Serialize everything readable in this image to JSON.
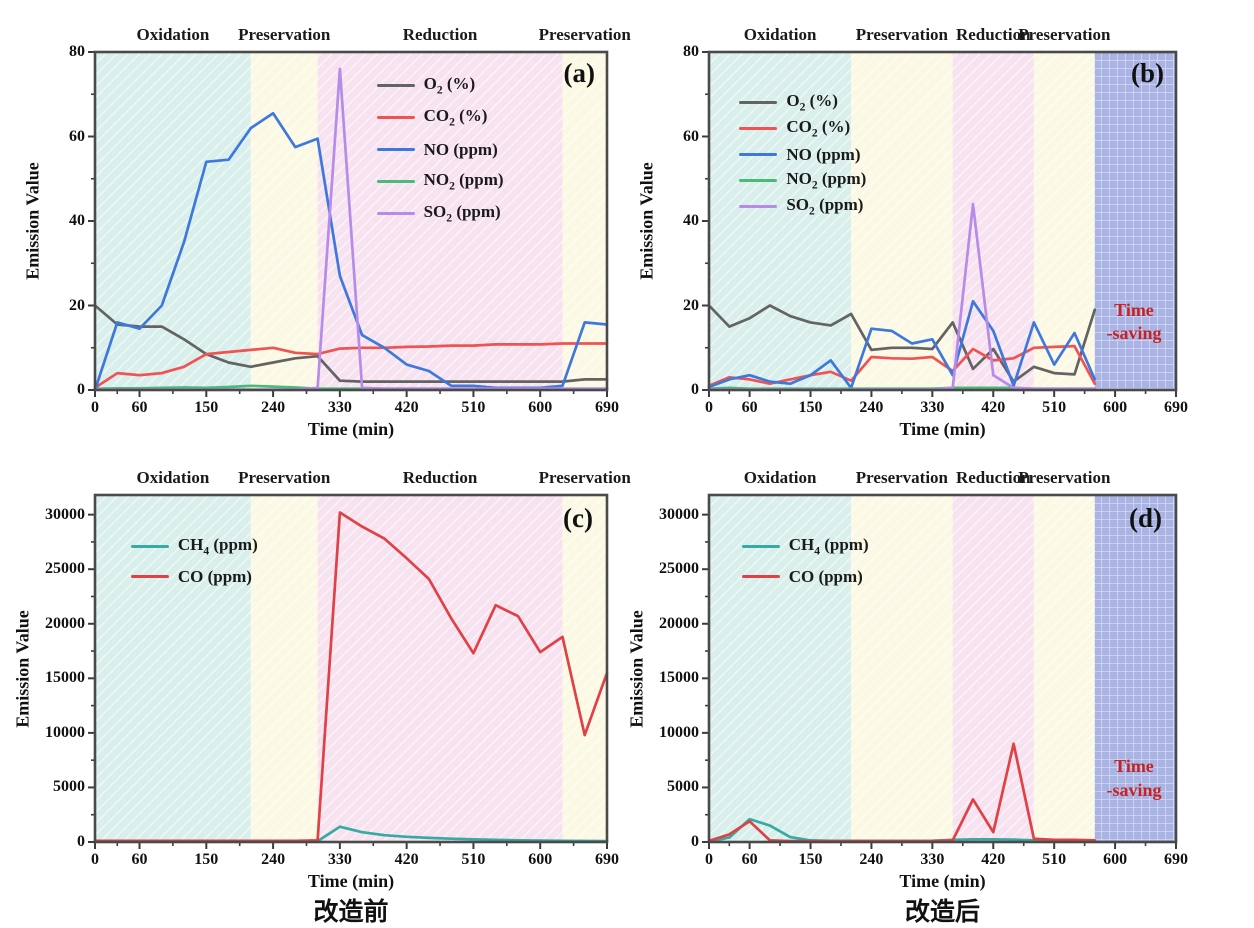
{
  "figure": {
    "captions": {
      "before": "改造前",
      "after": "改造后"
    },
    "colors": {
      "bands": {
        "cyan": "#d8efec",
        "yellow": "#fbf9e3",
        "pink": "#f7e2f0",
        "blue": "#a9b3e4"
      },
      "annotation_red": "#c62222",
      "axis": "#3c3c3c"
    }
  },
  "chart_data": [
    {
      "id": "a",
      "panel_label": "(a)",
      "type": "line",
      "xlabel": "Time (min)",
      "ylabel": "Emission Value",
      "xlim": [
        0,
        690
      ],
      "ylim": [
        0,
        80
      ],
      "xticks": [
        0,
        60,
        150,
        240,
        330,
        420,
        510,
        600,
        690
      ],
      "yticks": [
        0,
        20,
        40,
        60,
        80
      ],
      "bands": [
        {
          "label": "Oxidation",
          "from": 0,
          "to": 210,
          "color": "cyan"
        },
        {
          "label": "Preservation",
          "from": 210,
          "to": 300,
          "color": "yellow"
        },
        {
          "label": "Reduction",
          "from": 300,
          "to": 630,
          "color": "pink"
        },
        {
          "label": "Preservation",
          "from": 630,
          "to": 690,
          "color": "yellow"
        }
      ],
      "x": [
        0,
        30,
        60,
        90,
        120,
        150,
        180,
        210,
        240,
        270,
        300,
        330,
        360,
        390,
        420,
        450,
        480,
        510,
        540,
        570,
        600,
        630,
        660,
        690
      ],
      "series": [
        {
          "name": "O2 (%)",
          "color": "#636363",
          "values": [
            20,
            15.5,
            15,
            15,
            12,
            8.5,
            6.5,
            5.5,
            6.5,
            7.5,
            8,
            2.2,
            2,
            2,
            2,
            2,
            2,
            2,
            2,
            2,
            2,
            2,
            2.5,
            2.5
          ]
        },
        {
          "name": "CO2 (%)",
          "color": "#ef5352",
          "values": [
            0.5,
            4,
            3.5,
            4,
            5.5,
            8.5,
            9,
            9.5,
            10,
            8.8,
            8.5,
            9.8,
            10,
            10,
            10.2,
            10.3,
            10.5,
            10.5,
            10.8,
            10.8,
            10.8,
            11,
            11,
            11
          ]
        },
        {
          "name": "NO (ppm)",
          "color": "#3f78dd",
          "values": [
            0,
            16,
            14.5,
            20,
            35,
            54,
            54.5,
            62,
            65.5,
            57.5,
            59.5,
            27,
            13,
            10,
            6,
            4.5,
            1,
            1,
            0.5,
            0.5,
            0.5,
            1,
            16,
            15.5
          ]
        },
        {
          "name": "NO2 (ppm)",
          "color": "#4cb87c",
          "values": [
            0.3,
            0.4,
            0.4,
            0.5,
            0.6,
            0.5,
            0.7,
            1,
            0.8,
            0.6,
            0.3,
            0.3,
            0.3,
            0.3,
            0.3,
            0.3,
            0.3,
            0.3,
            0.3,
            0.3,
            0.3,
            0.3,
            0.3,
            0.3
          ]
        },
        {
          "name": "SO2 (ppm)",
          "color": "#b78be8",
          "values": [
            0.1,
            0.1,
            0.1,
            0.1,
            0.1,
            0.1,
            0.1,
            0.1,
            0.1,
            0.1,
            0.5,
            76,
            0.5,
            0.3,
            0.3,
            0.3,
            0.3,
            0.3,
            0.3,
            0.3,
            0.3,
            0.3,
            0.3,
            0.3
          ]
        }
      ],
      "annotation": null,
      "caption": null
    },
    {
      "id": "b",
      "panel_label": "(b)",
      "type": "line",
      "xlabel": "Time (min)",
      "ylabel": "Emission Value",
      "xlim": [
        0,
        690
      ],
      "ylim": [
        0,
        80
      ],
      "xticks": [
        0,
        60,
        150,
        240,
        330,
        420,
        510,
        600,
        690
      ],
      "yticks": [
        0,
        20,
        40,
        60,
        80
      ],
      "bands": [
        {
          "label": "Oxidation",
          "from": 0,
          "to": 210,
          "color": "cyan"
        },
        {
          "label": "Preservation",
          "from": 210,
          "to": 360,
          "color": "yellow"
        },
        {
          "label": "Reduction",
          "from": 360,
          "to": 480,
          "color": "pink"
        },
        {
          "label": "Preservation",
          "from": 480,
          "to": 570,
          "color": "yellow"
        },
        {
          "label": "",
          "from": 570,
          "to": 690,
          "color": "blue"
        }
      ],
      "x": [
        0,
        30,
        60,
        90,
        120,
        150,
        180,
        210,
        240,
        270,
        300,
        330,
        360,
        390,
        420,
        450,
        480,
        510,
        540,
        570
      ],
      "series": [
        {
          "name": "O2 (%)",
          "color": "#636363",
          "values": [
            20,
            15,
            17,
            20,
            17.5,
            16,
            15.3,
            18,
            9.5,
            10,
            10,
            9.7,
            16,
            5,
            9.7,
            2,
            5.5,
            4,
            3.7,
            19
          ]
        },
        {
          "name": "CO2 (%)",
          "color": "#ef5352",
          "values": [
            1,
            3,
            2.5,
            1.5,
            2.5,
            3.5,
            4.3,
            2.2,
            7.8,
            7.5,
            7.4,
            7.8,
            4.5,
            9.7,
            7,
            7.5,
            10,
            10.2,
            10.4,
            1.5
          ]
        },
        {
          "name": "NO (ppm)",
          "color": "#3f78dd",
          "values": [
            0.7,
            2.5,
            3.5,
            2,
            1.5,
            3.5,
            7,
            0.5,
            14.5,
            14,
            11,
            12,
            3.5,
            21,
            14,
            1,
            16,
            6,
            13.5,
            2.5
          ]
        },
        {
          "name": "NO2 (ppm)",
          "color": "#4cb87c",
          "values": [
            0.3,
            0.5,
            0.3,
            0.3,
            0.3,
            0.3,
            0.3,
            0.3,
            0.3,
            0.3,
            0.3,
            0.3,
            0.5,
            0.5,
            0.5,
            0.5,
            0.3,
            0.3,
            0.3,
            0.3
          ]
        },
        {
          "name": "SO2 (ppm)",
          "color": "#b78be8",
          "values": [
            0.1,
            0.1,
            0.1,
            0.1,
            0.1,
            0.1,
            0.1,
            0.1,
            0.1,
            0.1,
            0.1,
            0.1,
            0.5,
            44,
            3.5,
            0.5,
            0.3,
            0.3,
            0.3,
            0.3
          ]
        }
      ],
      "annotation": {
        "line1": "Time",
        "line2": "-saving"
      },
      "caption": null
    },
    {
      "id": "c",
      "panel_label": "(c)",
      "type": "line",
      "xlabel": "Time (min)",
      "ylabel": "Emission Value",
      "xlim": [
        0,
        690
      ],
      "ylim": [
        0,
        31800
      ],
      "xticks": [
        0,
        60,
        150,
        240,
        330,
        420,
        510,
        600,
        690
      ],
      "yticks": [
        0,
        5000,
        10000,
        15000,
        20000,
        25000,
        30000
      ],
      "bands": [
        {
          "label": "Oxidation",
          "from": 0,
          "to": 210,
          "color": "cyan"
        },
        {
          "label": "Preservation",
          "from": 210,
          "to": 300,
          "color": "yellow"
        },
        {
          "label": "Reduction",
          "from": 300,
          "to": 630,
          "color": "pink"
        },
        {
          "label": "Preservation",
          "from": 630,
          "to": 690,
          "color": "yellow"
        }
      ],
      "x": [
        0,
        30,
        60,
        90,
        120,
        150,
        180,
        210,
        240,
        270,
        300,
        330,
        360,
        390,
        420,
        450,
        480,
        510,
        540,
        570,
        600,
        630,
        660,
        690
      ],
      "series": [
        {
          "name": "CH4 (ppm)",
          "color": "#38aaa4",
          "values": [
            50,
            50,
            50,
            50,
            50,
            50,
            50,
            50,
            50,
            50,
            80,
            1400,
            900,
            620,
            480,
            380,
            300,
            250,
            200,
            160,
            130,
            110,
            90,
            80
          ]
        },
        {
          "name": "CO (ppm)",
          "color": "#e04146",
          "values": [
            100,
            100,
            100,
            100,
            100,
            100,
            100,
            100,
            100,
            100,
            150,
            30200,
            28900,
            27800,
            26000,
            24100,
            20500,
            17300,
            21700,
            20700,
            17400,
            18800,
            9800,
            15500
          ]
        }
      ],
      "annotation": null,
      "caption": "改造前"
    },
    {
      "id": "d",
      "panel_label": "(d)",
      "type": "line",
      "xlabel": "Time (min)",
      "ylabel": "Emission Value",
      "xlim": [
        0,
        690
      ],
      "ylim": [
        0,
        31800
      ],
      "xticks": [
        0,
        60,
        150,
        240,
        330,
        420,
        510,
        600,
        690
      ],
      "yticks": [
        0,
        5000,
        10000,
        15000,
        20000,
        25000,
        30000
      ],
      "bands": [
        {
          "label": "Oxidation",
          "from": 0,
          "to": 210,
          "color": "cyan"
        },
        {
          "label": "Preservation",
          "from": 210,
          "to": 360,
          "color": "yellow"
        },
        {
          "label": "Reduction",
          "from": 360,
          "to": 480,
          "color": "pink"
        },
        {
          "label": "Preservation",
          "from": 480,
          "to": 570,
          "color": "yellow"
        },
        {
          "label": "",
          "from": 570,
          "to": 690,
          "color": "blue"
        }
      ],
      "x": [
        0,
        30,
        60,
        90,
        120,
        150,
        180,
        210,
        240,
        270,
        300,
        330,
        360,
        390,
        420,
        450,
        480,
        510,
        540,
        570
      ],
      "series": [
        {
          "name": "CH4 (ppm)",
          "color": "#38aaa4",
          "values": [
            50,
            400,
            2100,
            1500,
            450,
            150,
            100,
            100,
            100,
            100,
            100,
            120,
            200,
            250,
            250,
            220,
            150,
            100,
            100,
            100
          ]
        },
        {
          "name": "CO (ppm)",
          "color": "#e04146",
          "values": [
            100,
            700,
            1900,
            150,
            80,
            80,
            80,
            80,
            80,
            80,
            80,
            80,
            150,
            3900,
            900,
            9000,
            300,
            200,
            200,
            150
          ]
        }
      ],
      "annotation": {
        "line1": "Time",
        "line2": "-saving"
      },
      "caption": "改造后"
    }
  ]
}
